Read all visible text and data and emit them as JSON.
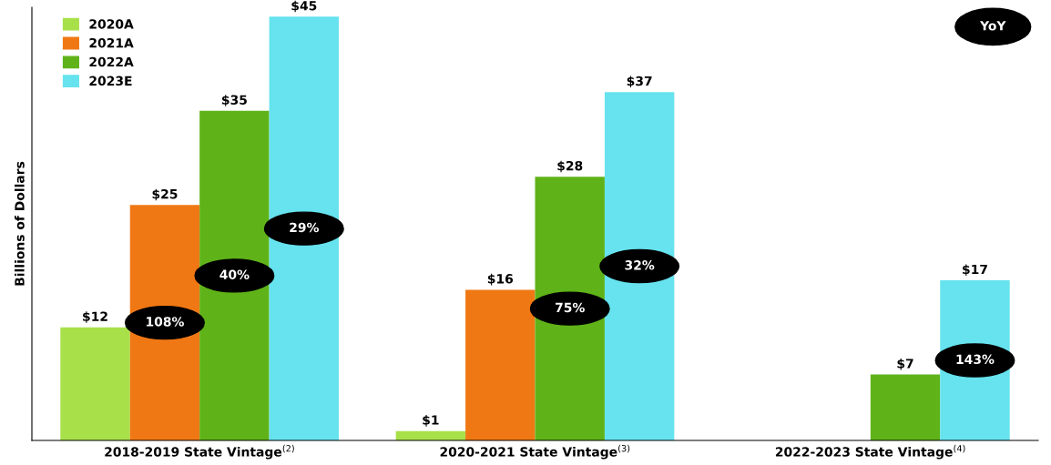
{
  "chart_data": {
    "type": "bar",
    "ylabel": "Billions of Dollars",
    "categories": [
      "2018-2019 State Vintage$^{(2)}$",
      "2020-2021 State Vintage$^{(3)}$",
      "2022-2023 State Vintage$^{(4)}$"
    ],
    "series": [
      {
        "name": "2020A",
        "color": "#a8e04a",
        "values": [
          12,
          1,
          null
        ],
        "value_labels": [
          "$12",
          "$1",
          null
        ]
      },
      {
        "name": "2021A",
        "color": "#f07814",
        "values": [
          25,
          16,
          null
        ],
        "value_labels": [
          "$25",
          "$16",
          null
        ]
      },
      {
        "name": "2022A",
        "color": "#5fb318",
        "values": [
          35,
          28,
          7
        ],
        "value_labels": [
          "$35",
          "$28",
          "$7"
        ]
      },
      {
        "name": "2023E",
        "color": "#66e3ee",
        "values": [
          45,
          37,
          17
        ],
        "value_labels": [
          "$45",
          "$37",
          "$17"
        ]
      }
    ],
    "ylim": [
      0,
      46
    ],
    "tick_labels": "x",
    "grid": false,
    "legend": "top left",
    "annotations": [
      "YoY",
      "108%",
      "40%",
      "29%",
      "75%",
      "32%",
      "143%"
    ]
  }
}
